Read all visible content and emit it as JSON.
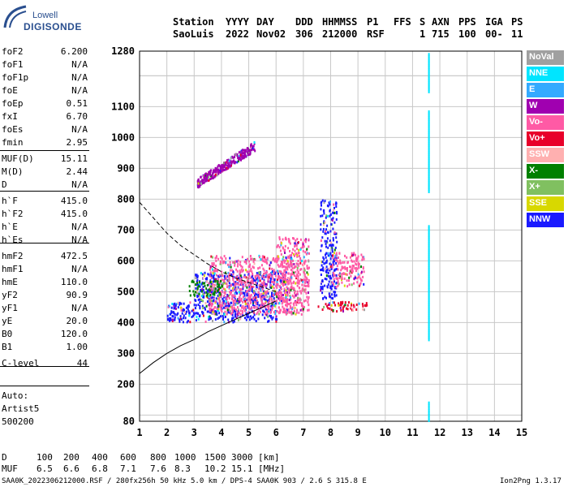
{
  "logo": {
    "line1": "Lowell",
    "line2": "DIGISONDE"
  },
  "header": {
    "row1": [
      "Station",
      "YYYY",
      "DAY",
      "DDD",
      "HHMMSS",
      "P1",
      "FFS",
      "S",
      "AXN",
      "PPS",
      "IGA",
      "PS"
    ],
    "row2": [
      "SaoLuis",
      "2022",
      "Nov02",
      "306",
      "212000",
      "RSF",
      "1",
      "715",
      "100",
      "00-",
      "11"
    ]
  },
  "params": [
    {
      "k": "foF2",
      "v": "6.200"
    },
    {
      "k": "foF1",
      "v": "N/A"
    },
    {
      "k": "foF1p",
      "v": "N/A"
    },
    {
      "k": "foE",
      "v": "N/A"
    },
    {
      "k": "foEp",
      "v": "0.51"
    },
    {
      "k": "fxI",
      "v": "6.70"
    },
    {
      "k": "foEs",
      "v": "N/A"
    },
    {
      "k": "fmin",
      "v": "2.95"
    },
    {
      "k": "MUF(D)",
      "v": "15.11"
    },
    {
      "k": "M(D)",
      "v": "2.44"
    },
    {
      "k": "D",
      "v": "N/A"
    },
    {
      "k": "h`F",
      "v": "415.0"
    },
    {
      "k": "h`F2",
      "v": "415.0"
    },
    {
      "k": "h`E",
      "v": "N/A"
    },
    {
      "k": "h`Es",
      "v": "N/A"
    },
    {
      "k": "hmF2",
      "v": "472.5"
    },
    {
      "k": "hmF1",
      "v": "N/A"
    },
    {
      "k": "hmE",
      "v": "110.0"
    },
    {
      "k": "yF2",
      "v": "90.9"
    },
    {
      "k": "yF1",
      "v": "N/A"
    },
    {
      "k": "yE",
      "v": "20.0"
    },
    {
      "k": "B0",
      "v": "120.0"
    },
    {
      "k": "B1",
      "v": "1.00"
    },
    {
      "k": "C-level",
      "v": "44"
    }
  ],
  "auto": {
    "line1": "Auto:",
    "line2": "Artist5",
    "line3": "500200"
  },
  "legend": [
    {
      "label": "NoVal",
      "color": "#a0a0a0"
    },
    {
      "label": "NNE",
      "color": "#00e5ff"
    },
    {
      "label": "E",
      "color": "#33aaff"
    },
    {
      "label": "W",
      "color": "#a000b0"
    },
    {
      "label": "Vo-",
      "color": "#ff5aa5"
    },
    {
      "label": "Vo+",
      "color": "#e8002a"
    },
    {
      "label": "SSW",
      "color": "#ffb0b0"
    },
    {
      "label": "X-",
      "color": "#008000"
    },
    {
      "label": "X+",
      "color": "#80c060"
    },
    {
      "label": "SSE",
      "color": "#d8d800"
    },
    {
      "label": "NNW",
      "color": "#1a1aff"
    }
  ],
  "chart_data": {
    "type": "scatter",
    "xlim": [
      1,
      15
    ],
    "ylim": [
      80,
      1280
    ],
    "x_ticks": [
      1,
      2,
      3,
      4,
      5,
      6,
      7,
      8,
      9,
      10,
      11,
      12,
      13,
      14,
      15
    ],
    "y_ticks": [
      80,
      200,
      300,
      400,
      500,
      600,
      700,
      800,
      900,
      1000,
      1100,
      1280
    ],
    "grid": true,
    "clusters": [
      {
        "name": "W-upper",
        "color_key": "W",
        "x": [
          3.1,
          5.2
        ],
        "y": [
          855,
          985
        ]
      },
      {
        "name": "F-main-low",
        "color_key": "NNW",
        "x": [
          2.0,
          6.0
        ],
        "y": [
          405,
          470
        ]
      },
      {
        "name": "F-main-mid",
        "color_key": "NNW",
        "x": [
          3.0,
          6.4
        ],
        "y": [
          470,
          570
        ]
      },
      {
        "name": "F-mixed",
        "color_key": "Vo-",
        "x": [
          3.5,
          6.8
        ],
        "y": [
          430,
          620
        ]
      },
      {
        "name": "X-green",
        "color_key": "X-",
        "x": [
          2.8,
          4.0
        ],
        "y": [
          490,
          540
        ]
      },
      {
        "name": "Vo-band7",
        "color_key": "Vo-",
        "x": [
          6.0,
          7.2
        ],
        "y": [
          430,
          680
        ]
      },
      {
        "name": "NNW-band8",
        "color_key": "NNW",
        "x": [
          7.6,
          8.2
        ],
        "y": [
          480,
          800
        ]
      },
      {
        "name": "Vo+band8",
        "color_key": "Vo+",
        "x": [
          7.5,
          9.3
        ],
        "y": [
          440,
          470
        ]
      },
      {
        "name": "Vo-band8-9",
        "color_key": "Vo-",
        "x": [
          8.0,
          9.2
        ],
        "y": [
          520,
          630
        ]
      }
    ],
    "vertical_line": {
      "x": 11.6,
      "y": [
        350,
        1280
      ],
      "color_key": "NNE"
    },
    "dashed_curve": {
      "x": [
        1.0,
        1.5,
        2.0,
        2.5,
        3.0,
        3.5,
        4.0,
        4.5,
        5.0,
        5.5,
        6.0
      ],
      "y": [
        790,
        740,
        690,
        650,
        620,
        590,
        565,
        545,
        530,
        515,
        500
      ]
    },
    "solid_curve": {
      "x": [
        1.0,
        1.5,
        2.0,
        2.5,
        3.0,
        3.5,
        4.0,
        4.5,
        5.0,
        5.5,
        6.0
      ],
      "y": [
        235,
        270,
        300,
        325,
        345,
        370,
        390,
        410,
        430,
        450,
        470
      ]
    }
  },
  "footer": {
    "d_label": "D",
    "d_values": [
      "100",
      "200",
      "400",
      "600",
      "800",
      "1000",
      "1500",
      "3000"
    ],
    "d_unit": "[km]",
    "muf_label": "MUF",
    "muf_values": [
      "6.5",
      "6.6",
      "6.8",
      "7.1",
      "7.6",
      "8.3",
      "10.2",
      "15.1"
    ],
    "muf_unit": "[MHz]",
    "file_line": "SAA0K_2022306212000.RSF / 280fx256h 50 kHz 5.0 km / DPS-4 SAA0K 903 / 2.6 S 315.8 E",
    "version": "Ion2Png 1.3.17"
  }
}
